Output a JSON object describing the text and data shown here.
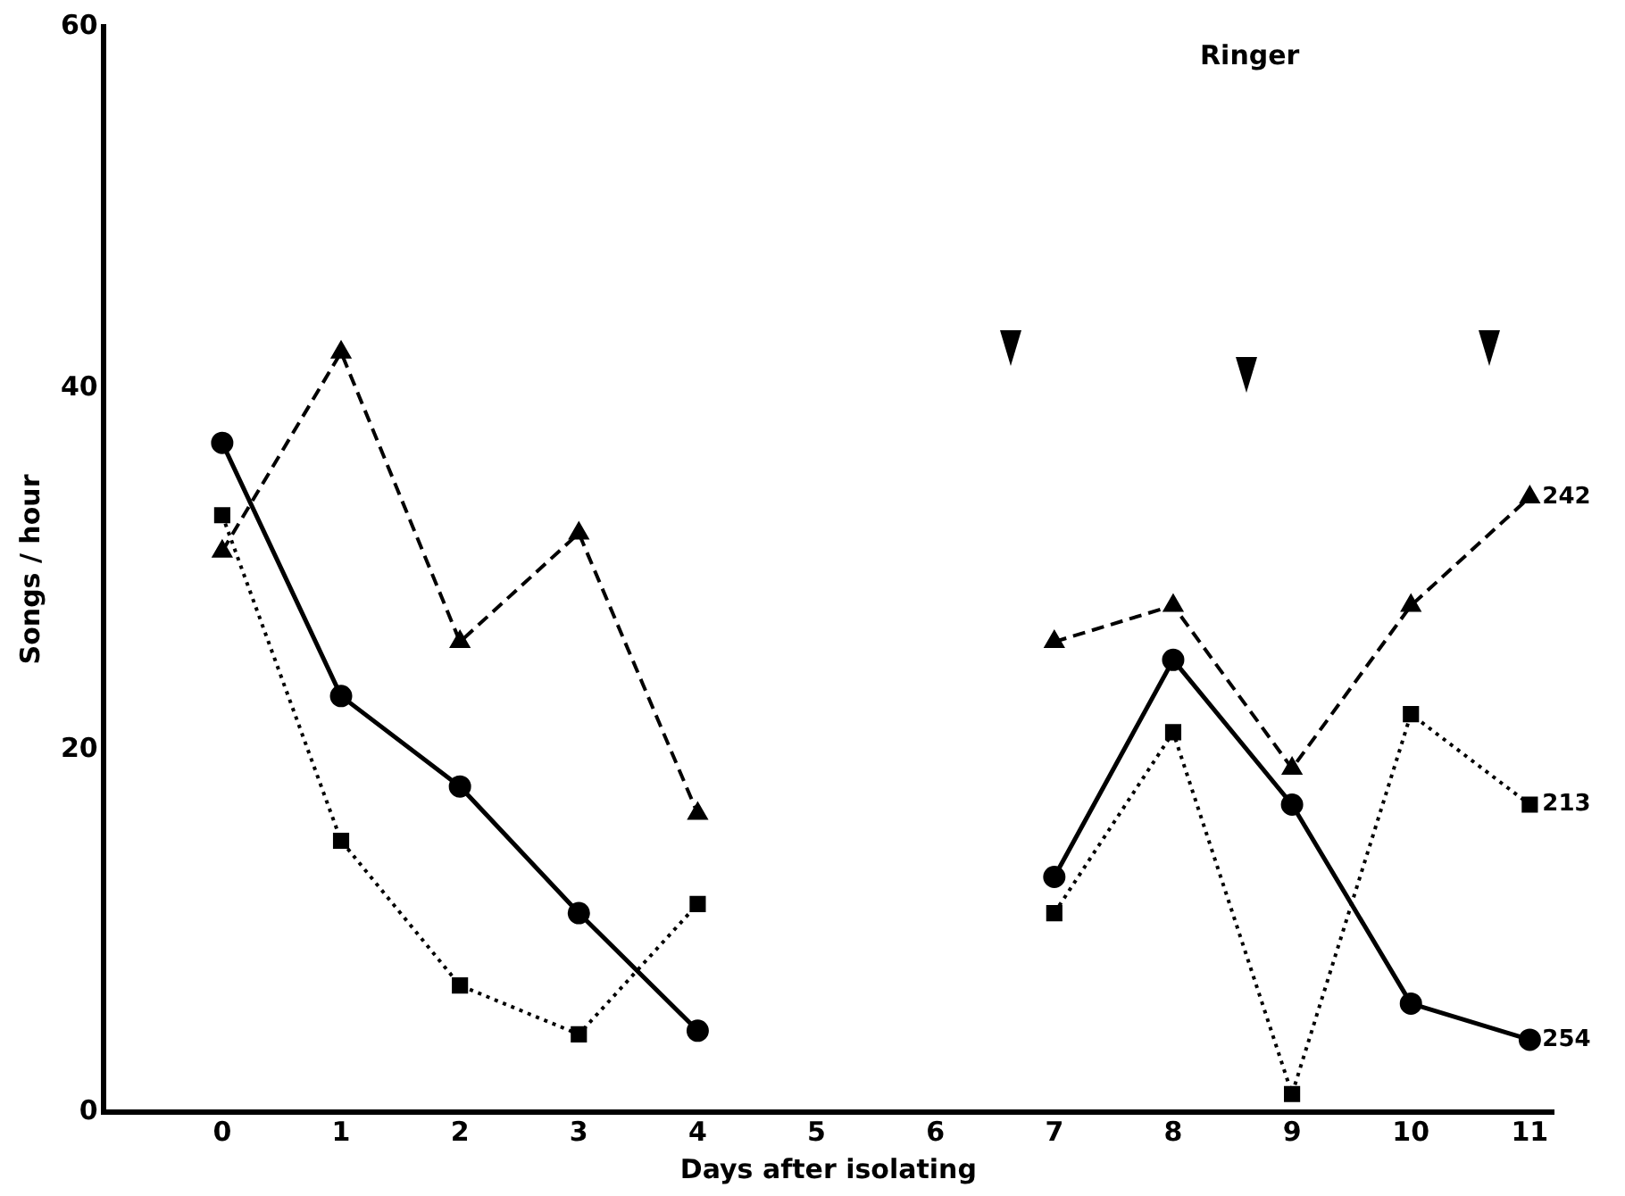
{
  "chart_data": {
    "type": "line",
    "xlabel": "Days after isolating",
    "ylabel": "Songs / hour",
    "x": [
      0,
      1,
      2,
      3,
      4,
      5,
      6,
      7,
      8,
      9,
      10,
      11
    ],
    "xlim": [
      -1,
      11.2
    ],
    "xticks": [
      0,
      1,
      2,
      3,
      4,
      5,
      6,
      7,
      8,
      9,
      10,
      11
    ],
    "ylim": [
      0,
      60
    ],
    "yticks": [
      0,
      20,
      40,
      60
    ],
    "grid": false,
    "legend": false,
    "series": [
      {
        "name": "242",
        "color": "#000000",
        "marker": "triangle",
        "line_style": "dashed",
        "values": [
          31,
          42,
          26,
          32,
          16.5,
          null,
          null,
          26,
          28,
          19,
          28,
          34
        ]
      },
      {
        "name": "254",
        "color": "#000000",
        "marker": "circle",
        "line_style": "solid",
        "values": [
          37,
          23,
          18,
          11,
          4.5,
          null,
          null,
          13,
          25,
          17,
          6,
          4
        ]
      },
      {
        "name": "213",
        "color": "#000000",
        "marker": "square",
        "line_style": "dotted",
        "values": [
          33,
          15,
          7,
          4.3,
          11.5,
          null,
          null,
          11,
          21,
          1,
          22,
          17
        ]
      }
    ],
    "annotations": [
      "Ringer"
    ]
  }
}
